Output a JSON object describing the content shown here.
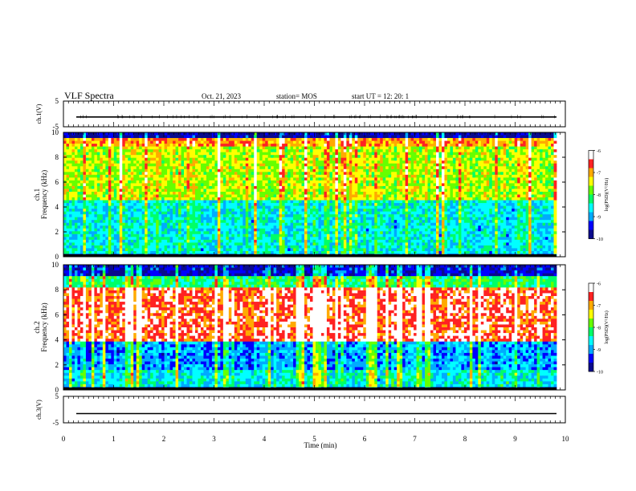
{
  "header": {
    "title": "VLF Spectra",
    "date": "Oct. 21, 2023",
    "station": "station= MOS",
    "start_time": "start  UT =   12: 20: 1"
  },
  "chart_data": [
    {
      "type": "line",
      "panel": "ch.1 waveform",
      "ylabel": "ch.1(V)",
      "ylim": [
        -5,
        5
      ],
      "yticks": [
        "5",
        "-5"
      ],
      "series": [
        {
          "values": [
            -1.2,
            -1.2,
            -1.2,
            -1.2,
            -1.2,
            -1.2,
            -1.2,
            -1.2,
            -1.2,
            -1.2
          ]
        }
      ]
    },
    {
      "type": "heatmap",
      "panel": "ch.1 spectrogram",
      "ylabel": "ch.1\nFrequency (kHz)",
      "ylim": [
        0,
        10
      ],
      "yticks": [
        "0",
        "2",
        "4",
        "6",
        "8",
        "10"
      ],
      "colorbar": {
        "label": "log(PSD)(V²/Hz)",
        "ticks": [
          "-6",
          "-7",
          "-8",
          "-9",
          "-10"
        ],
        "range": [
          -10,
          -6
        ]
      },
      "description_bands": [
        {
          "freq_khz": [
            0,
            0.3
          ],
          "level": -9.6
        },
        {
          "freq_khz": [
            0.3,
            4.5
          ],
          "level": -8.6
        },
        {
          "freq_khz": [
            4.5,
            8.8
          ],
          "level": -7.6
        },
        {
          "freq_khz": [
            8.8,
            9.6
          ],
          "level": -7.0
        },
        {
          "freq_khz": [
            9.6,
            10
          ],
          "level": -9.8
        }
      ]
    },
    {
      "type": "heatmap",
      "panel": "ch.2 spectrogram",
      "ylabel": "ch.2\nFrequency (kHz)",
      "ylim": [
        0,
        10
      ],
      "yticks": [
        "0",
        "2",
        "4",
        "6",
        "8",
        "10"
      ],
      "colorbar": {
        "label": "log(PSD)(V²/Hz)",
        "ticks": [
          "-6",
          "-7",
          "-8",
          "-9",
          "-10"
        ],
        "range": [
          -10,
          -6
        ]
      },
      "description_bands": [
        {
          "freq_khz": [
            0,
            0.3
          ],
          "level": -9.8
        },
        {
          "freq_khz": [
            0.3,
            1.6
          ],
          "level": -8.6
        },
        {
          "freq_khz": [
            1.6,
            3.8
          ],
          "level": -9.0
        },
        {
          "freq_khz": [
            3.8,
            8.2
          ],
          "level": -6.6
        },
        {
          "freq_khz": [
            8.2,
            9.2
          ],
          "level": -8.2
        },
        {
          "freq_khz": [
            9.2,
            10
          ],
          "level": -9.6
        }
      ]
    },
    {
      "type": "line",
      "panel": "ch.3 waveform",
      "ylabel": "ch.3(V)",
      "ylim": [
        -5,
        5
      ],
      "yticks": [
        "5",
        "-5"
      ],
      "xlabel": "Time  (min)",
      "xlim": [
        0,
        10
      ],
      "xticks": [
        "0",
        "1",
        "2",
        "3",
        "4",
        "5",
        "6",
        "7",
        "8",
        "9",
        "10"
      ],
      "series": [
        {
          "values": [
            -1.5,
            -1.5,
            -1.5,
            -1.5,
            -1.5,
            -1.5,
            -1.5,
            -1.5,
            -1.5,
            -1.5
          ]
        }
      ]
    }
  ],
  "colors": {
    "scale": [
      "#0a0a8c",
      "#0000ff",
      "#00aaff",
      "#00ffff",
      "#00ff66",
      "#66ff00",
      "#ffff00",
      "#ffaa00",
      "#ff2222",
      "#ffffff"
    ]
  }
}
